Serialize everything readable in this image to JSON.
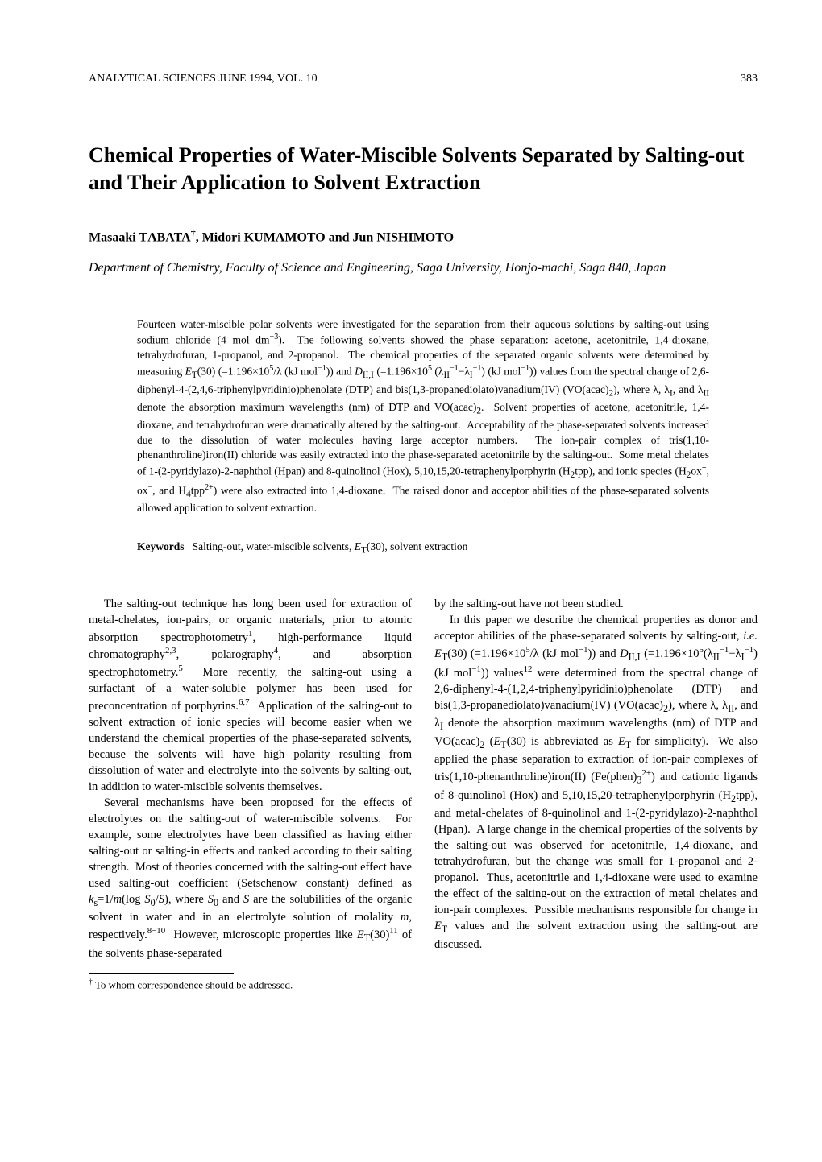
{
  "header": {
    "journal": "ANALYTICAL SCIENCES   JUNE 1994, VOL. 10",
    "page": "383"
  },
  "title": "Chemical Properties of Water-Miscible Solvents Separated by Salting-out and Their Application to Solvent Extraction",
  "authors_html": "Masaaki T<span style='font-variant:small-caps'>ABATA</span><sup>†</sup>, Midori K<span style='font-variant:small-caps'>UMAMOTO</span> and Jun N<span style='font-variant:small-caps'>ISHIMOTO</span>",
  "affiliation": "Department of Chemistry, Faculty of Science and Engineering, Saga University, Honjo-machi, Saga 840, Japan",
  "abstract_html": "Fourteen water-miscible polar solvents were investigated for the separation from their aqueous solutions by salting-out using sodium chloride (4 mol dm<sup>−3</sup>).&nbsp;&nbsp;The following solvents showed the phase separation: acetone, acetonitrile, 1,4-dioxane, tetrahydrofuran, 1-propanol, and 2-propanol.&nbsp;&nbsp;The chemical properties of the separated organic solvents were determined by measuring <i>E</i><sub>T</sub>(30) (=1.196×10<sup>5</sup>/λ (kJ mol<sup>−1</sup>)) and <i>D</i><sub>II,I</sub> (=1.196×10<sup>5</sup> (λ<sub>II</sub><sup>−1</sup>−λ<sub>I</sub><sup>−1</sup>) (kJ mol<sup>−1</sup>)) values from the spectral change of 2,6-diphenyl-4-(2,4,6-triphenylpyridinio)phenolate (DTP) and bis(1,3-propanediolato)vanadium(IV) (VO(acac)<sub>2</sub>), where λ, λ<sub>I</sub>, and λ<sub>II</sub> denote the absorption maximum wavelengths (nm) of DTP and VO(acac)<sub>2</sub>.&nbsp;&nbsp;Solvent properties of acetone, acetonitrile, 1,4-dioxane, and tetrahydrofuran were dramatically altered by the salting-out.&nbsp;&nbsp;Acceptability of the phase-separated solvents increased due to the dissolution of water molecules having large acceptor numbers.&nbsp;&nbsp;The ion-pair complex of tris(1,10-phenanthroline)iron(II) chloride was easily extracted into the phase-separated acetonitrile by the salting-out.&nbsp;&nbsp;Some metal chelates of 1-(2-pyridylazo)-2-naphthol (Hpan) and 8-quinolinol (Hox), 5,10,15,20-tetraphenylporphyrin (H<sub>2</sub>tpp), and ionic species (H<sub>2</sub>ox<sup>+</sup>, ox<sup>−</sup>, and H<sub>4</sub>tpp<sup>2+</sup>) were also extracted into 1,4-dioxane.&nbsp;&nbsp;The raised donor and acceptor abilities of the phase-separated solvents allowed application to solvent extraction.",
  "keywords_label": "Keywords",
  "keywords_html": "Salting-out, water-miscible solvents, <i>E</i><sub>T</sub>(30), solvent extraction",
  "col1": {
    "p1_html": "The salting-out technique has long been used for extraction of metal-chelates, ion-pairs, or organic materials, prior to atomic absorption spectrophotometry<sup>1</sup>, high-performance liquid chromatography<sup>2,3</sup>, polarography<sup>4</sup>, and absorption spectrophotometry.<sup>5</sup>&nbsp;&nbsp;More recently, the salting-out using a surfactant of a water-soluble polymer has been used for preconcentration of porphyrins.<sup>6,7</sup>&nbsp;&nbsp;Application of the salting-out to solvent extraction of ionic species will become easier when we understand the chemical properties of the phase-separated solvents, because the solvents will have high polarity resulting from dissolution of water and electrolyte into the solvents by salting-out, in addition to water-miscible solvents themselves.",
    "p2_html": "Several mechanisms have been proposed for the effects of electrolytes on the salting-out of water-miscible solvents.&nbsp;&nbsp;For example, some electrolytes have been classified as having either salting-out or salting-in effects and ranked according to their salting strength.&nbsp;&nbsp;Most of theories concerned with the salting-out effect have used salting-out coefficient (Setschenow constant) defined as <i>k</i><sub>s</sub>=1/<i>m</i>(log <i>S</i><sub>0</sub>/<i>S</i>), where <i>S</i><sub>0</sub> and <i>S</i> are the solubilities of the organic solvent in water and in an electrolyte solution of molality <i>m</i>, respectively.<sup>8−10</sup>&nbsp;&nbsp;However, microscopic properties like <i>E</i><sub>T</sub>(30)<sup>11</sup> of the solvents phase-separated"
  },
  "col2": {
    "p1_html": "by the salting-out have not been studied.",
    "p2_html": "In this paper we describe the chemical properties as donor and acceptor abilities of the phase-separated solvents by salting-out, <i>i.e.</i> <i>E</i><sub>T</sub>(30) (=1.196×10<sup>5</sup>/λ (kJ mol<sup>−1</sup>)) and <i>D</i><sub>II,I</sub> (=1.196×10<sup>5</sup>(λ<sub>II</sub><sup>−1</sup>−λ<sub>I</sub><sup>−1</sup>) (kJ mol<sup>−1</sup>)) values<sup>12</sup> were determined from the spectral change of 2,6-diphenyl-4-(1,2,4-triphenylpyridinio)phenolate (DTP) and bis(1,3-propanediolato)vanadium(IV) (VO(acac)<sub>2</sub>), where λ, λ<sub>II</sub>, and λ<sub>I</sub> denote the absorption maximum wavelengths (nm) of DTP and VO(acac)<sub>2</sub> (<i>E</i><sub>T</sub>(30) is abbreviated as <i>E</i><sub>T</sub> for simplicity).&nbsp;&nbsp;We also applied the phase separation to extraction of ion-pair complexes of tris(1,10-phenanthroline)iron(II) (Fe(phen)<sub>3</sub><sup>2+</sup>) and cationic ligands of 8-quinolinol (Hox) and 5,10,15,20-tetraphenylporphyrin (H<sub>2</sub>tpp), and metal-chelates of 8-quinolinol and 1-(2-pyridylazo)-2-naphthol (Hpan).&nbsp;&nbsp;A large change in the chemical properties of the solvents by the salting-out was observed for acetonitrile, 1,4-dioxane, and tetrahydrofuran, but the change was small for 1-propanol and 2-propanol.&nbsp;&nbsp;Thus, acetonitrile and 1,4-dioxane were used to examine the effect of the salting-out on the extraction of metal chelates and ion-pair complexes.&nbsp;&nbsp;Possible mechanisms responsible for change in <i>E</i><sub>T</sub> values and the solvent extraction using the salting-out are discussed."
  },
  "footnote_html": "<sup>†</sup> To whom correspondence should be addressed."
}
